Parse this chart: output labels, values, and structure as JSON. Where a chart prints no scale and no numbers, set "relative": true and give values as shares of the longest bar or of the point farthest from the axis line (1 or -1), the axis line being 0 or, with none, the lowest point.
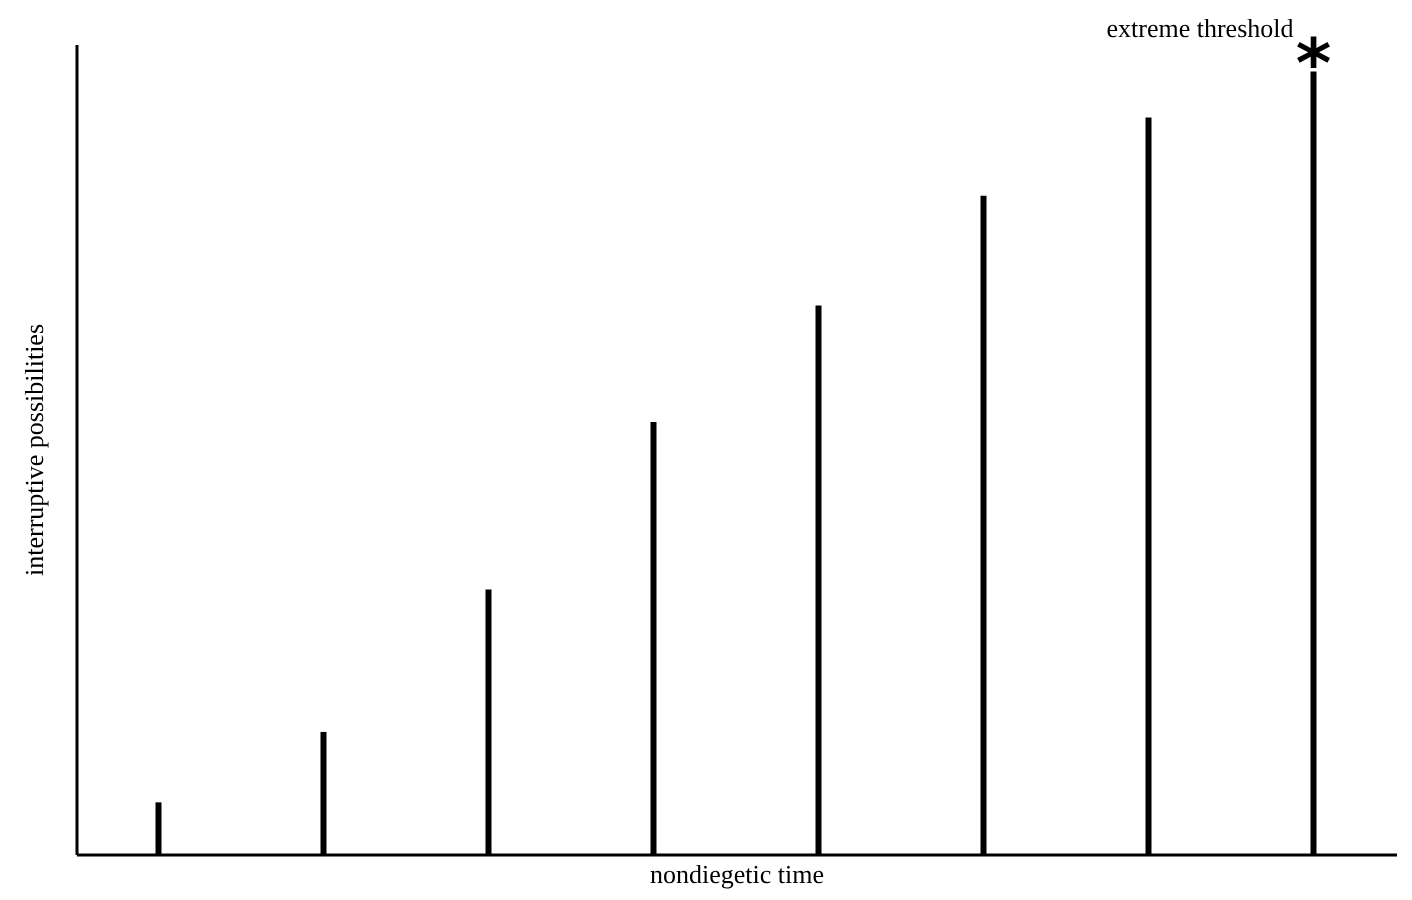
{
  "chart_data": {
    "type": "bar",
    "relative": true,
    "xlabel": "nondiegetic time",
    "ylabel": "interruptive possibilities",
    "categories": [
      null,
      null,
      null,
      null,
      null,
      null,
      null,
      null
    ],
    "values": [
      0.066,
      0.156,
      0.338,
      0.552,
      0.701,
      0.841,
      0.941,
      1
    ],
    "color": "#000000",
    "grid": false,
    "annotations": [
      "extreme threshold",
      "*"
    ]
  }
}
